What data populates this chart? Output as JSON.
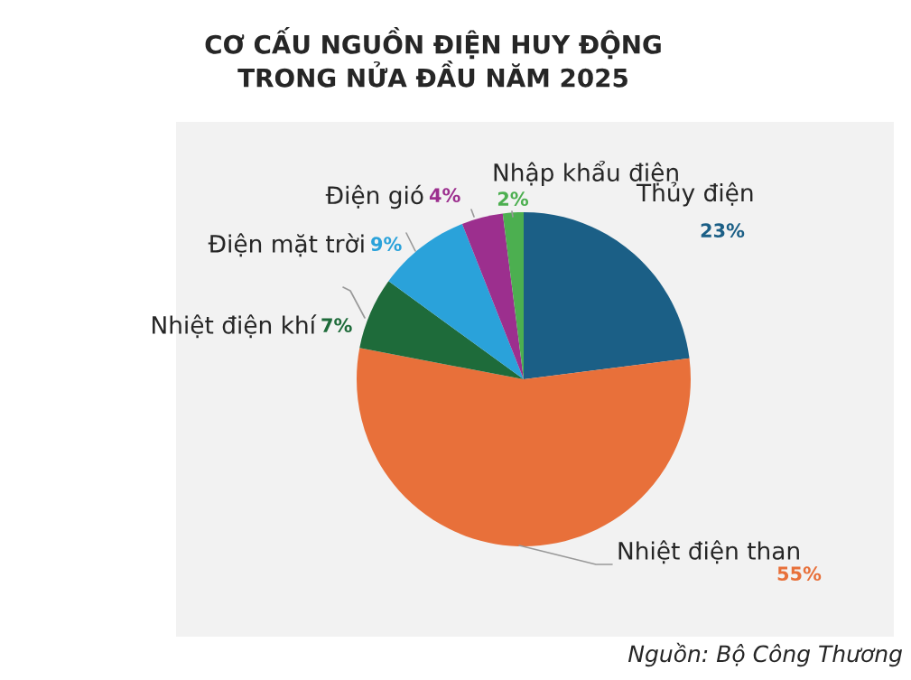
{
  "chart_data": {
    "type": "pie",
    "title": "CƠ CẤU NGUỒN ĐIỆN HUY ĐỘNG\nTRONG NỬA ĐẦU NĂM 2025",
    "categories": [
      "Thủy điện",
      "Nhiệt điện than",
      "Nhiệt điện khí",
      "Điện mặt trời",
      "Điện gió",
      "Nhập khẩu điện"
    ],
    "values": [
      23,
      55,
      7,
      9,
      4,
      2
    ],
    "colors": [
      "#1b5f86",
      "#e8703a",
      "#1e6b3a",
      "#2aa2da",
      "#9c2f8e",
      "#4caf50"
    ],
    "value_labels": [
      "23%",
      "55%",
      "7%",
      "9%",
      "4%",
      "2%"
    ],
    "annotations": [
      "Nguồn: Bộ Công Thương"
    ]
  }
}
